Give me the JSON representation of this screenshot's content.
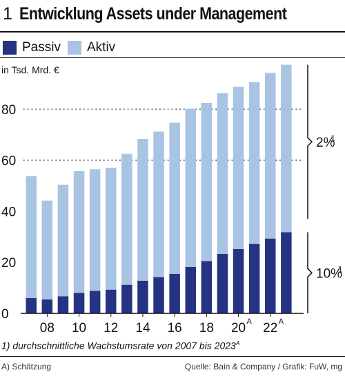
{
  "header": {
    "number": "1",
    "title": "Entwicklung Assets under Management"
  },
  "legend": [
    {
      "label": "Passiv",
      "color": "#263282"
    },
    {
      "label": "Aktiv",
      "color": "#a9c4e2"
    }
  ],
  "chart_data": {
    "type": "bar",
    "stacked": true,
    "unit_label": "in Tsd. Mrd. €",
    "categories": [
      "2007",
      "2008",
      "2009",
      "2010",
      "2011",
      "2012",
      "2013",
      "2014",
      "2015",
      "2016",
      "2017",
      "2018",
      "2019",
      "2020",
      "2021",
      "2022",
      "2023"
    ],
    "tick_labels": [
      {
        "index": 1,
        "label": "08",
        "mark": ""
      },
      {
        "index": 3,
        "label": "10",
        "mark": ""
      },
      {
        "index": 5,
        "label": "12",
        "mark": ""
      },
      {
        "index": 7,
        "label": "14",
        "mark": ""
      },
      {
        "index": 9,
        "label": "16",
        "mark": ""
      },
      {
        "index": 11,
        "label": "18",
        "mark": ""
      },
      {
        "index": 13,
        "label": "20",
        "mark": "A"
      },
      {
        "index": 15,
        "label": "22",
        "mark": "A"
      }
    ],
    "series": [
      {
        "name": "Passiv",
        "color": "#263282",
        "values": [
          6,
          5.5,
          6.7,
          8,
          8.8,
          9.3,
          11.2,
          12.8,
          14.2,
          15.5,
          18.2,
          20.5,
          23.3,
          25.2,
          27.2,
          29.3,
          31.8
        ]
      },
      {
        "name": "Aktiv",
        "color": "#a9c4e2",
        "values": [
          47.8,
          38.7,
          43.7,
          47.8,
          47.7,
          47.7,
          51.3,
          55.5,
          57,
          59.2,
          62,
          61.9,
          63,
          63.5,
          63.4,
          64.9,
          65.6
        ]
      }
    ],
    "ylim": [
      0,
      98
    ],
    "yticks": [
      0,
      20,
      40,
      60,
      80
    ],
    "dotted_gridlines": [
      60,
      80
    ],
    "brackets": [
      {
        "from": 37,
        "to": 97.4,
        "label": "2%",
        "mark": "1"
      },
      {
        "from": 0,
        "to": 31.8,
        "label": "10%",
        "mark": "1"
      }
    ],
    "colors": {
      "passiv": "#263282",
      "aktiv": "#a9c4e2"
    }
  },
  "footnote": {
    "text": "1) durchschnittliche Wachstumsrate von 2007 bis 2023",
    "mark": "A"
  },
  "footer": {
    "left": "A) Schätzung",
    "right": "Quelle: Bain & Company / Grafik: FuW, mg"
  }
}
